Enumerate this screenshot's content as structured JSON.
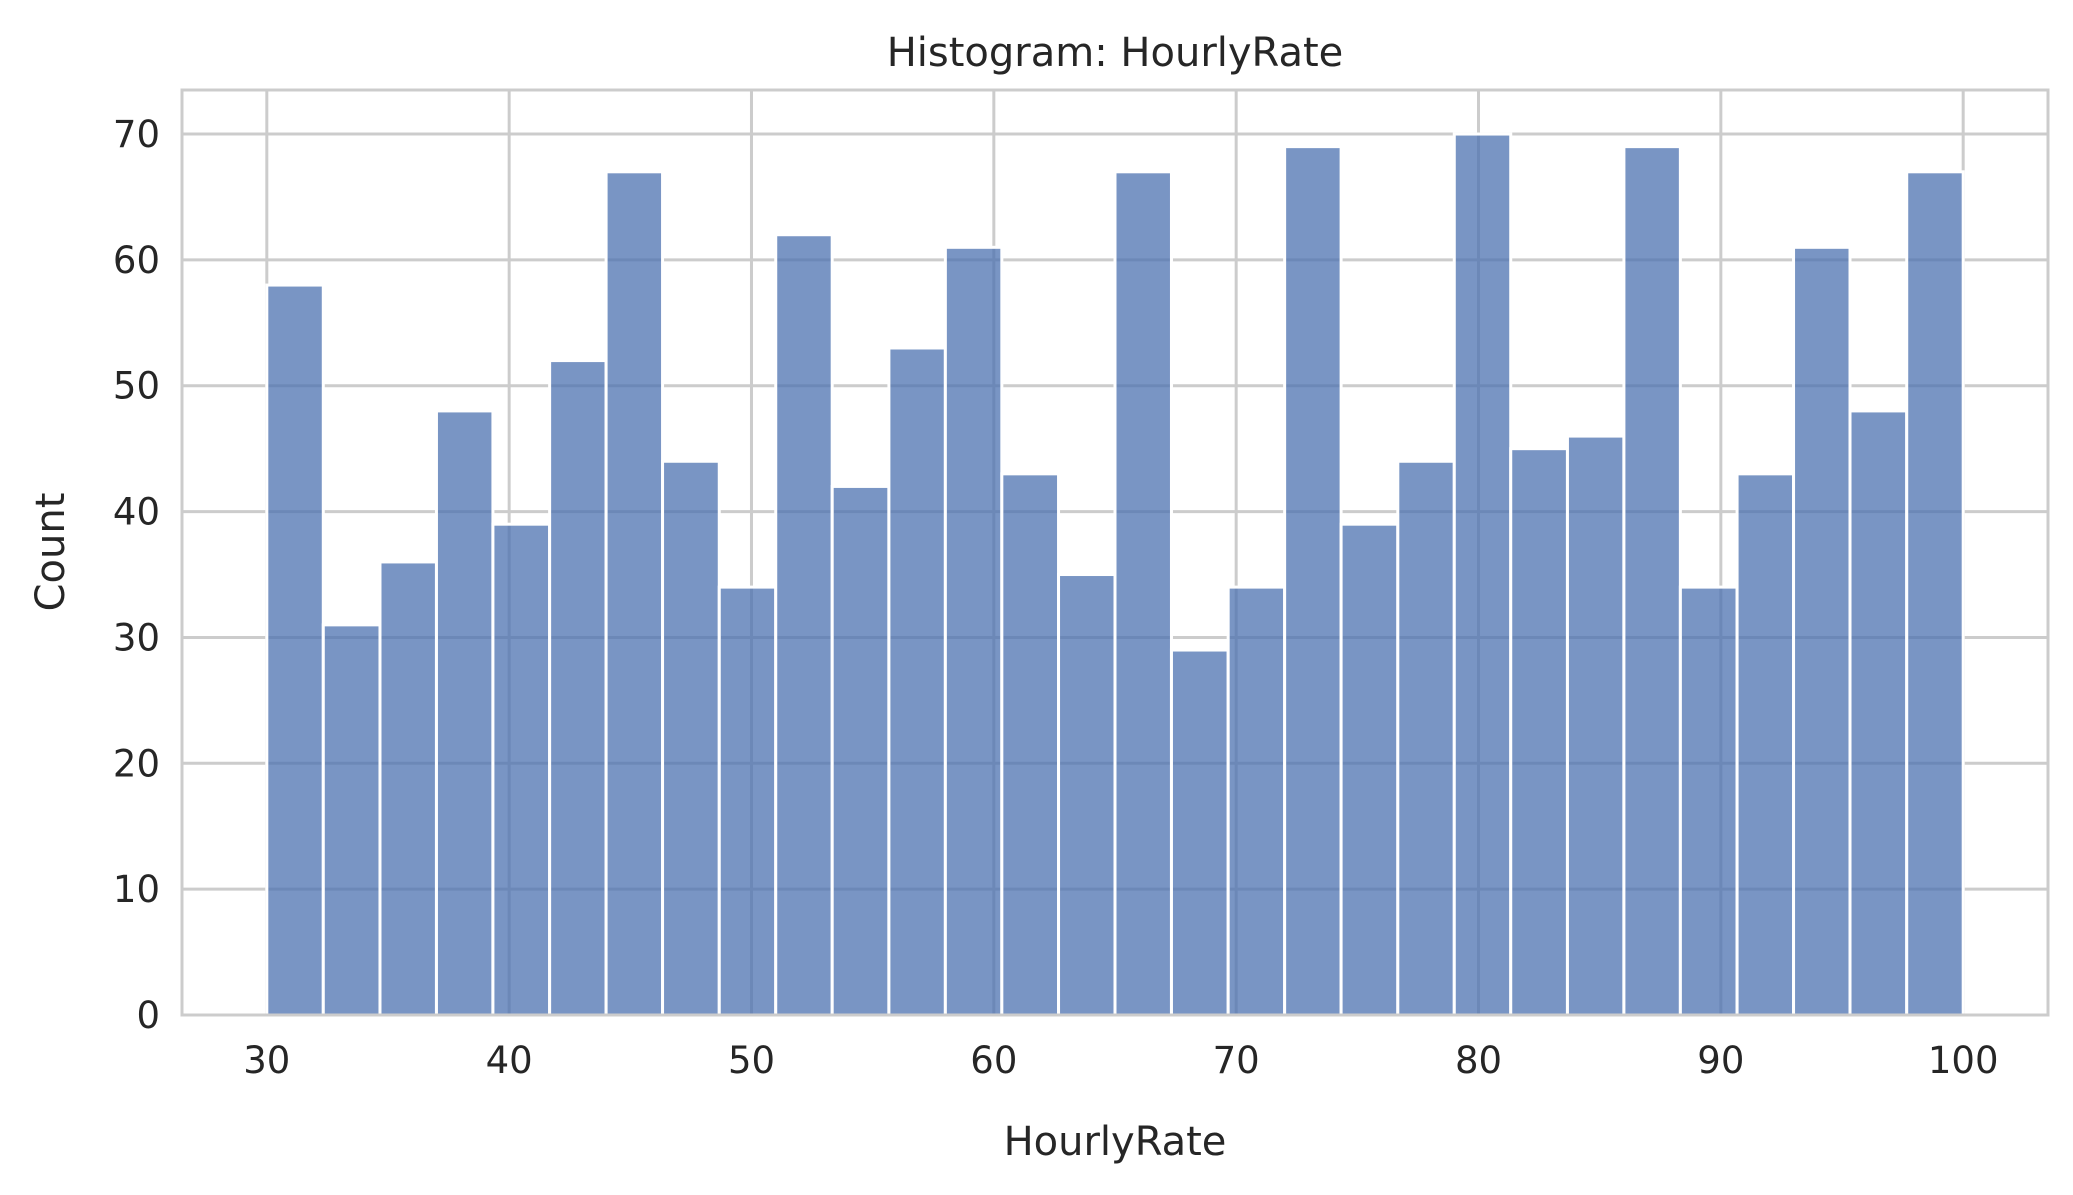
{
  "chart_data": {
    "type": "bar",
    "title": "Histogram: HourlyRate",
    "xlabel": "HourlyRate",
    "ylabel": "Count",
    "xlim": [
      26.5,
      103.5
    ],
    "ylim": [
      0,
      73.5
    ],
    "xticks": [
      30,
      40,
      50,
      60,
      70,
      80,
      90,
      100
    ],
    "yticks": [
      0,
      10,
      20,
      30,
      40,
      50,
      60,
      70
    ],
    "grid": true,
    "bar_color": "#4c72b0",
    "bins": [
      {
        "x0": 30.0,
        "x1": 32.33,
        "count": 58
      },
      {
        "x0": 32.33,
        "x1": 34.67,
        "count": 31
      },
      {
        "x0": 34.67,
        "x1": 37.0,
        "count": 36
      },
      {
        "x0": 37.0,
        "x1": 39.33,
        "count": 48
      },
      {
        "x0": 39.33,
        "x1": 41.67,
        "count": 39
      },
      {
        "x0": 41.67,
        "x1": 44.0,
        "count": 52
      },
      {
        "x0": 44.0,
        "x1": 46.33,
        "count": 67
      },
      {
        "x0": 46.33,
        "x1": 48.67,
        "count": 44
      },
      {
        "x0": 48.67,
        "x1": 51.0,
        "count": 34
      },
      {
        "x0": 51.0,
        "x1": 53.33,
        "count": 62
      },
      {
        "x0": 53.33,
        "x1": 55.67,
        "count": 42
      },
      {
        "x0": 55.67,
        "x1": 58.0,
        "count": 53
      },
      {
        "x0": 58.0,
        "x1": 60.33,
        "count": 61
      },
      {
        "x0": 60.33,
        "x1": 62.67,
        "count": 43
      },
      {
        "x0": 62.67,
        "x1": 65.0,
        "count": 35
      },
      {
        "x0": 65.0,
        "x1": 67.33,
        "count": 67
      },
      {
        "x0": 67.33,
        "x1": 69.67,
        "count": 29
      },
      {
        "x0": 69.67,
        "x1": 72.0,
        "count": 34
      },
      {
        "x0": 72.0,
        "x1": 74.33,
        "count": 69
      },
      {
        "x0": 74.33,
        "x1": 76.67,
        "count": 39
      },
      {
        "x0": 76.67,
        "x1": 79.0,
        "count": 44
      },
      {
        "x0": 79.0,
        "x1": 81.33,
        "count": 70
      },
      {
        "x0": 81.33,
        "x1": 83.67,
        "count": 45
      },
      {
        "x0": 83.67,
        "x1": 86.0,
        "count": 46
      },
      {
        "x0": 86.0,
        "x1": 88.33,
        "count": 69
      },
      {
        "x0": 88.33,
        "x1": 90.67,
        "count": 34
      },
      {
        "x0": 90.67,
        "x1": 93.0,
        "count": 43
      },
      {
        "x0": 93.0,
        "x1": 95.33,
        "count": 61
      },
      {
        "x0": 95.33,
        "x1": 97.67,
        "count": 48
      },
      {
        "x0": 97.67,
        "x1": 100.0,
        "count": 67
      }
    ]
  }
}
